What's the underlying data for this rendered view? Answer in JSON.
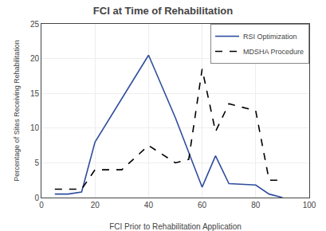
{
  "chart_data": {
    "type": "line",
    "title": "FCI at Time of Rehabilitation",
    "xlabel": "FCI Prior to Rehabilitation Application",
    "ylabel": "Percentage of Sites Receiving Rehabilitation",
    "series": [
      {
        "name": "RSI Optimization",
        "color": "#2e4d9e",
        "line_style": "solid",
        "x": [
          5,
          10,
          15,
          20,
          40,
          50,
          60,
          65,
          70,
          80,
          85,
          90
        ],
        "values": [
          0.5,
          0.5,
          0.8,
          8.0,
          20.5,
          11.5,
          1.5,
          6.0,
          2.0,
          1.8,
          0.5,
          0.0
        ]
      },
      {
        "name": "MDSHA Procedure",
        "color": "#000000",
        "line_style": "dashed",
        "x": [
          5,
          10,
          15,
          20,
          30,
          40,
          50,
          55,
          60,
          65,
          70,
          75,
          80,
          85,
          90
        ],
        "values": [
          1.2,
          1.2,
          1.2,
          4.0,
          4.0,
          7.5,
          5.0,
          5.5,
          18.5,
          9.5,
          13.5,
          13.0,
          12.5,
          2.5,
          2.5
        ]
      }
    ],
    "xlim": [
      0,
      100
    ],
    "ylim": [
      0,
      25
    ],
    "xticks": [
      0,
      20,
      40,
      60,
      80,
      100
    ],
    "yticks": [
      0,
      5,
      10,
      15,
      20,
      25
    ],
    "grid": true,
    "legend": "upper right"
  }
}
